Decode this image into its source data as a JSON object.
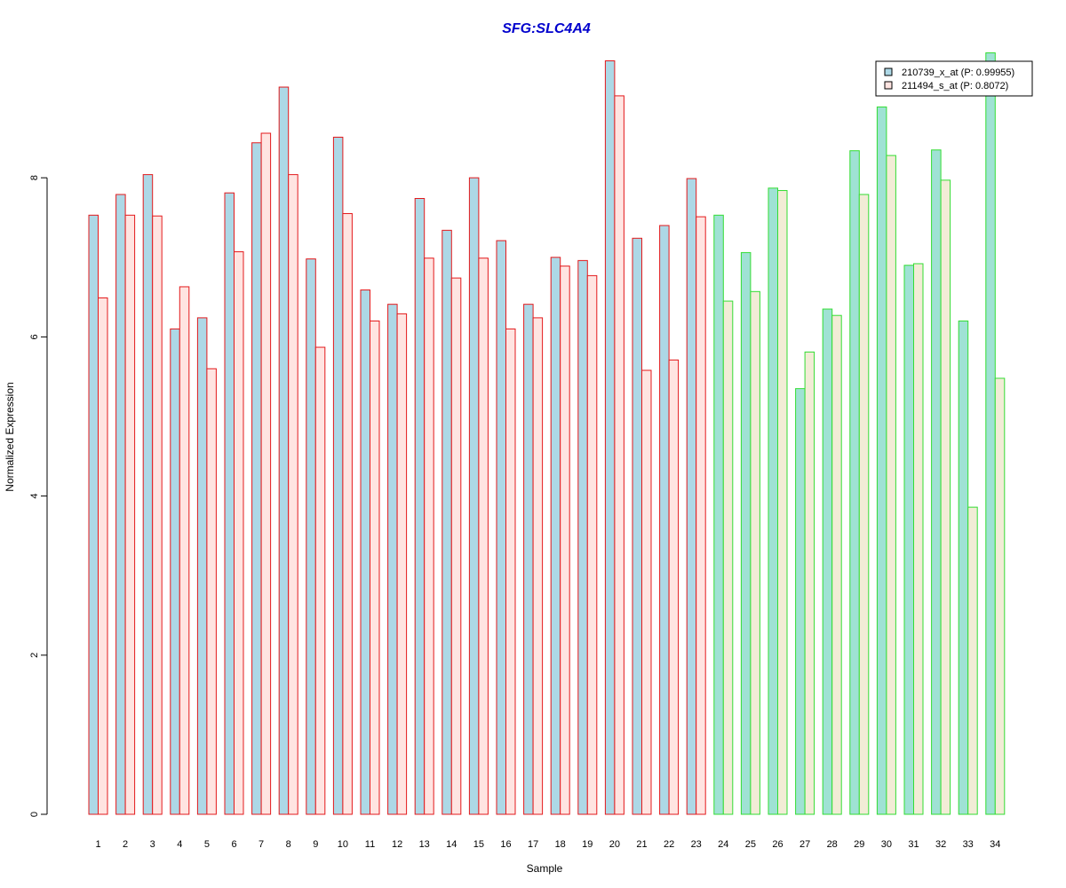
{
  "chart_data": {
    "type": "bar",
    "title": "SFG:SLC4A4",
    "xlabel": "Sample",
    "ylabel": "Normalized Expression",
    "ylim": [
      0,
      9.6
    ],
    "yticks": [
      0,
      2,
      4,
      6,
      8
    ],
    "categories": [
      "1",
      "2",
      "3",
      "4",
      "5",
      "6",
      "7",
      "8",
      "9",
      "10",
      "11",
      "12",
      "13",
      "14",
      "15",
      "16",
      "17",
      "18",
      "19",
      "20",
      "21",
      "22",
      "23",
      "24",
      "25",
      "26",
      "27",
      "28",
      "29",
      "30",
      "31",
      "32",
      "33",
      "34"
    ],
    "series": [
      {
        "name": "210739_x_at (P: 0.99955)",
        "fill": "#add8e6",
        "values": [
          7.53,
          7.79,
          8.04,
          6.1,
          6.24,
          7.81,
          8.44,
          9.14,
          6.98,
          8.51,
          6.59,
          6.41,
          7.74,
          7.34,
          8.0,
          7.21,
          6.41,
          7.0,
          6.96,
          9.47,
          7.24,
          7.4,
          7.99,
          7.53,
          7.06,
          7.87,
          5.35,
          6.35,
          8.34,
          8.89,
          6.9,
          8.35,
          6.2,
          9.57
        ]
      },
      {
        "name": "211494_s_at (P: 0.8072)",
        "fill": "#ffe4e1",
        "values": [
          6.49,
          7.53,
          7.52,
          6.63,
          5.6,
          7.07,
          8.56,
          8.04,
          5.87,
          7.55,
          6.2,
          6.29,
          6.99,
          6.74,
          6.99,
          6.1,
          6.24,
          6.89,
          6.77,
          9.03,
          5.58,
          5.71,
          7.51,
          6.45,
          6.57,
          7.84,
          5.81,
          6.27,
          7.79,
          8.28,
          6.92,
          7.97,
          3.86,
          5.48
        ]
      }
    ],
    "group_border_colors": {
      "group_1": "#e31a1c",
      "group_2": "#33dd33"
    },
    "group_1_count": 23,
    "group_2_fill_series1": "#9fe2d4",
    "group_2_fill_series2": "#f2ecd6",
    "legend_position": "top-right"
  }
}
